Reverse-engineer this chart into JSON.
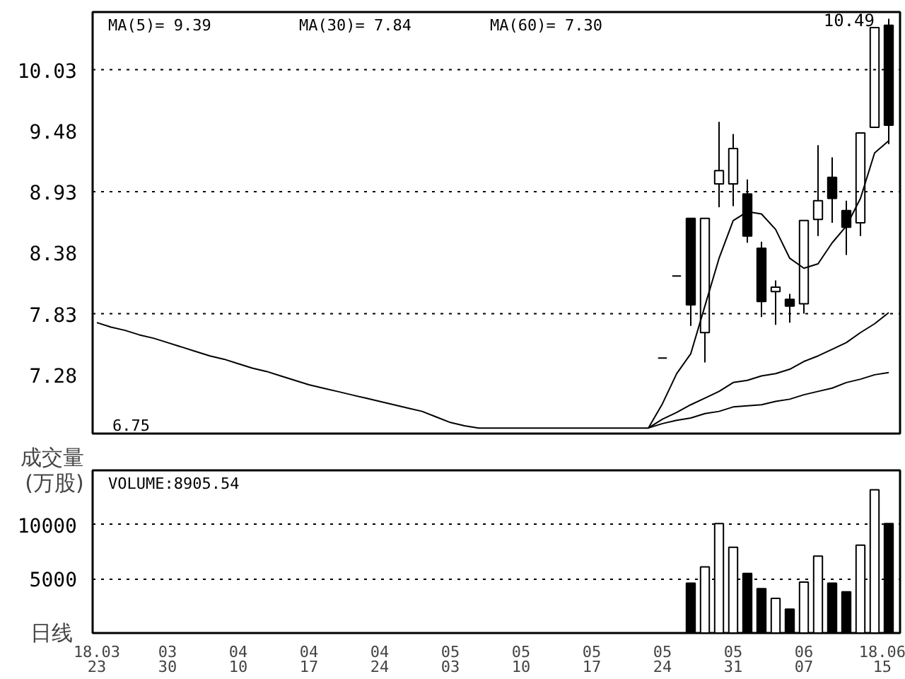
{
  "chart_data": [
    {
      "type": "candlestick",
      "categories": [
        "18.03\n23",
        null,
        null,
        null,
        null,
        "03\n30",
        null,
        null,
        null,
        null,
        "04\n10",
        null,
        null,
        null,
        null,
        "04\n17",
        null,
        null,
        null,
        null,
        "04\n24",
        null,
        null,
        null,
        null,
        "05\n03",
        null,
        null,
        null,
        null,
        "05\n10",
        null,
        null,
        null,
        null,
        "05\n17",
        null,
        null,
        null,
        null,
        "05\n24",
        null,
        null,
        null,
        null,
        "05\n31",
        null,
        null,
        null,
        null,
        "06\n07",
        null,
        null,
        null,
        null,
        null,
        "18.06\n15"
      ],
      "ohlc": [
        null,
        null,
        null,
        null,
        null,
        null,
        null,
        null,
        null,
        null,
        null,
        null,
        null,
        null,
        null,
        null,
        null,
        null,
        null,
        null,
        null,
        null,
        null,
        null,
        null,
        null,
        null,
        null,
        null,
        null,
        null,
        null,
        null,
        null,
        null,
        null,
        null,
        null,
        null,
        null,
        [
          7.43,
          7.43,
          7.43,
          7.43
        ],
        [
          8.17,
          8.17,
          8.17,
          8.17
        ],
        [
          8.69,
          8.69,
          7.72,
          7.91
        ],
        [
          7.66,
          8.69,
          7.39,
          8.69
        ],
        [
          9.0,
          9.56,
          8.79,
          9.12
        ],
        [
          9.0,
          9.45,
          8.8,
          9.32
        ],
        [
          8.91,
          9.04,
          8.47,
          8.53
        ],
        [
          8.42,
          8.48,
          7.8,
          7.94
        ],
        [
          8.03,
          8.13,
          7.73,
          8.07
        ],
        [
          7.96,
          8.01,
          7.75,
          7.9
        ],
        [
          7.92,
          8.67,
          7.83,
          8.67
        ],
        [
          8.68,
          9.35,
          8.53,
          8.85
        ],
        [
          9.06,
          9.24,
          8.65,
          8.87
        ],
        [
          8.76,
          8.85,
          8.36,
          8.61
        ],
        [
          8.65,
          9.46,
          8.53,
          9.46
        ],
        [
          9.51,
          10.41,
          9.51,
          10.41
        ],
        [
          10.43,
          10.49,
          9.36,
          9.53
        ]
      ],
      "colors": [
        null,
        null,
        null,
        null,
        null,
        null,
        null,
        null,
        null,
        null,
        null,
        null,
        null,
        null,
        null,
        null,
        null,
        null,
        null,
        null,
        null,
        null,
        null,
        null,
        null,
        null,
        null,
        null,
        null,
        null,
        null,
        null,
        null,
        null,
        null,
        null,
        null,
        null,
        null,
        null,
        "#000000",
        "#000000",
        "#000000",
        "#ffffff",
        "#ffffff",
        "#ffffff",
        "#000000",
        "#000000",
        "#ffffff",
        "#000000",
        "#ffffff",
        "#ffffff",
        "#000000",
        "#000000",
        "#ffffff",
        "#ffffff",
        "#000000"
      ],
      "series": [
        {
          "type": "line",
          "color": "#000000",
          "values": [
            null,
            null,
            null,
            null,
            null,
            null,
            null,
            null,
            null,
            null,
            null,
            null,
            null,
            null,
            null,
            null,
            null,
            null,
            null,
            null,
            null,
            null,
            null,
            null,
            null,
            null,
            null,
            null,
            null,
            null,
            null,
            null,
            null,
            null,
            null,
            null,
            null,
            null,
            null,
            6.8,
            7.02,
            7.29,
            7.47,
            7.9,
            8.33,
            8.67,
            8.75,
            8.73,
            8.59,
            8.33,
            8.24,
            8.28,
            8.47,
            8.62,
            8.87,
            9.28,
            9.39
          ]
        },
        {
          "type": "line",
          "color": "#000000",
          "values": [
            null,
            null,
            null,
            null,
            null,
            null,
            null,
            null,
            null,
            null,
            null,
            null,
            null,
            null,
            null,
            null,
            null,
            null,
            null,
            null,
            null,
            null,
            null,
            null,
            null,
            null,
            null,
            null,
            null,
            null,
            null,
            null,
            null,
            null,
            null,
            null,
            null,
            null,
            null,
            6.8,
            6.88,
            6.94,
            7.01,
            7.07,
            7.13,
            7.21,
            7.23,
            7.27,
            7.29,
            7.33,
            7.4,
            7.45,
            7.51,
            7.57,
            7.66,
            7.74,
            7.84
          ]
        },
        {
          "type": "line",
          "color": "#000000",
          "values": [
            7.75,
            7.71,
            7.68,
            7.64,
            7.61,
            7.57,
            7.53,
            7.49,
            7.45,
            7.42,
            7.38,
            7.34,
            7.31,
            7.27,
            7.23,
            7.19,
            7.16,
            7.13,
            7.1,
            7.07,
            7.04,
            7.01,
            6.98,
            6.95,
            6.9,
            6.85,
            6.82,
            6.8,
            6.8,
            6.8,
            6.8,
            6.8,
            6.8,
            6.8,
            6.8,
            6.8,
            6.8,
            6.8,
            6.8,
            6.8,
            6.84,
            6.87,
            6.89,
            6.93,
            6.95,
            6.99,
            7.0,
            7.01,
            7.04,
            7.06,
            7.1,
            7.13,
            7.16,
            7.21,
            7.24,
            7.28,
            7.3
          ]
        }
      ],
      "ylim": [
        6.75,
        10.55
      ],
      "yticks": [
        7.28,
        7.83,
        8.38,
        8.93,
        9.48,
        10.03
      ],
      "ref_lines": [
        {
          "axis": "y",
          "value": 7.83,
          "line_style": "dotted"
        },
        {
          "axis": "y",
          "value": 8.93,
          "line_style": "dotted"
        },
        {
          "axis": "y",
          "value": 10.03,
          "line_style": "dotted"
        }
      ],
      "annotations": [
        "MA(5)=  9.39",
        "MA(30)=  7.84",
        "MA(60)=  7.30",
        {
          "text": "10.49",
          "x": "18.06\n15",
          "y": 10.49
        },
        "6.75"
      ],
      "tick_labels": "y"
    },
    {
      "type": "bar",
      "categories": [
        "18.03\n23",
        null,
        null,
        null,
        null,
        "03\n30",
        null,
        null,
        null,
        null,
        "04\n10",
        null,
        null,
        null,
        null,
        "04\n17",
        null,
        null,
        null,
        null,
        "04\n24",
        null,
        null,
        null,
        null,
        "05\n03",
        null,
        null,
        null,
        null,
        "05\n10",
        null,
        null,
        null,
        null,
        "05\n17",
        null,
        null,
        null,
        null,
        "05\n24",
        null,
        null,
        null,
        null,
        "05\n31",
        null,
        null,
        null,
        null,
        "06\n07",
        null,
        null,
        null,
        null,
        null,
        "18.06\n15"
      ],
      "values": [
        null,
        null,
        null,
        null,
        null,
        null,
        null,
        null,
        null,
        null,
        null,
        null,
        null,
        null,
        null,
        null,
        null,
        null,
        null,
        null,
        null,
        null,
        null,
        null,
        null,
        null,
        null,
        null,
        null,
        null,
        null,
        null,
        null,
        null,
        null,
        null,
        null,
        null,
        null,
        null,
        null,
        null,
        4600,
        6100,
        10100,
        7900,
        5500,
        4100,
        3200,
        2200,
        4700,
        7100,
        4600,
        3800,
        8100,
        13200,
        10100
      ],
      "colors": [
        null,
        null,
        null,
        null,
        null,
        null,
        null,
        null,
        null,
        null,
        null,
        null,
        null,
        null,
        null,
        null,
        null,
        null,
        null,
        null,
        null,
        null,
        null,
        null,
        null,
        null,
        null,
        null,
        null,
        null,
        null,
        null,
        null,
        null,
        null,
        null,
        null,
        null,
        null,
        null,
        null,
        null,
        "#000000",
        "#ffffff",
        "#ffffff",
        "#ffffff",
        "#000000",
        "#000000",
        "#ffffff",
        "#000000",
        "#ffffff",
        "#ffffff",
        "#000000",
        "#000000",
        "#ffffff",
        "#ffffff",
        "#000000"
      ],
      "ylabel": "成交量\n(万股)",
      "xlabel": "日线",
      "ylim": [
        0,
        15000
      ],
      "yticks": [
        5000,
        10000
      ],
      "grid": "y",
      "annotations": [
        "VOLUME:8905.54"
      ]
    }
  ]
}
